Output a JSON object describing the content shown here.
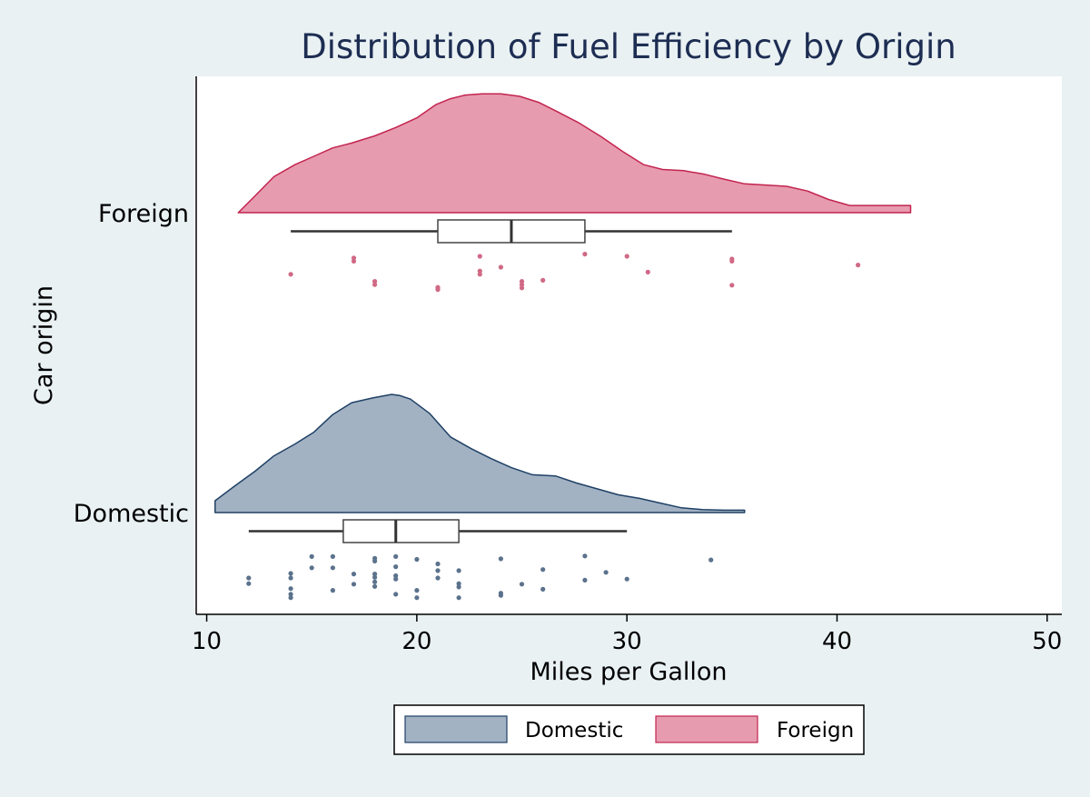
{
  "chart_data": {
    "type": "raincloud",
    "title": "Distribution of Fuel Efficiency by Origin",
    "xlabel": "Miles per Gallon",
    "ylabel": "Car origin",
    "xlim": [
      9.5,
      50.7
    ],
    "xticks": [
      10,
      20,
      30,
      40,
      50
    ],
    "xtick_labels": [
      "10",
      "20",
      "30",
      "40",
      "50"
    ],
    "grid": false,
    "legend_position": "bottom-center",
    "legend": [
      {
        "label": "Domestic",
        "color": "#a2b2c3",
        "edge": "#1f4065"
      },
      {
        "label": "Foreign",
        "color": "#e79bae",
        "edge": "#c2244f"
      }
    ],
    "series": [
      {
        "name": "Foreign",
        "color": "#e79bae",
        "edge_color": "#c2244f",
        "point_color": "#d06985",
        "density": {
          "x": [
            11.5,
            12.3,
            13.2,
            14.2,
            15.1,
            16.0,
            16.9,
            18.0,
            19.0,
            20.0,
            20.9,
            21.6,
            22.3,
            23.1,
            24.0,
            24.9,
            25.8,
            26.7,
            27.7,
            28.8,
            29.8,
            30.8,
            31.7,
            32.7,
            33.7,
            34.6,
            35.6,
            36.6,
            37.6,
            38.6,
            39.6,
            40.6,
            41.6,
            43.5
          ],
          "y": [
            0.0,
            0.14,
            0.3,
            0.4,
            0.47,
            0.54,
            0.58,
            0.64,
            0.71,
            0.79,
            0.9,
            0.95,
            0.98,
            0.99,
            0.99,
            0.97,
            0.92,
            0.84,
            0.75,
            0.63,
            0.51,
            0.4,
            0.36,
            0.35,
            0.32,
            0.28,
            0.24,
            0.23,
            0.22,
            0.18,
            0.11,
            0.06,
            0.06,
            0.06
          ]
        },
        "box": {
          "whisker_low": 14,
          "q1": 21,
          "median": 24.5,
          "q3": 28,
          "whisker_high": 35
        },
        "points": [
          {
            "x": 14,
            "j": 0.53
          },
          {
            "x": 17,
            "j": 0.23
          },
          {
            "x": 17,
            "j": 0.29
          },
          {
            "x": 18,
            "j": 0.66
          },
          {
            "x": 18,
            "j": 0.72
          },
          {
            "x": 21,
            "j": 0.77
          },
          {
            "x": 21,
            "j": 0.81
          },
          {
            "x": 23,
            "j": 0.2
          },
          {
            "x": 23,
            "j": 0.47
          },
          {
            "x": 23,
            "j": 0.53
          },
          {
            "x": 24,
            "j": 0.4
          },
          {
            "x": 25,
            "j": 0.66
          },
          {
            "x": 25,
            "j": 0.72
          },
          {
            "x": 25,
            "j": 0.78
          },
          {
            "x": 26,
            "j": 0.64
          },
          {
            "x": 28,
            "j": 0.16
          },
          {
            "x": 30,
            "j": 0.2
          },
          {
            "x": 31,
            "j": 0.49
          },
          {
            "x": 35,
            "j": 0.25
          },
          {
            "x": 35,
            "j": 0.29
          },
          {
            "x": 35,
            "j": 0.73
          },
          {
            "x": 41,
            "j": 0.36
          }
        ]
      },
      {
        "name": "Domestic",
        "color": "#a2b2c3",
        "edge_color": "#1f4065",
        "point_color": "#5b728c",
        "density": {
          "x": [
            10.4,
            11.3,
            12.3,
            13.2,
            14.2,
            15.1,
            16.0,
            16.9,
            17.9,
            18.8,
            19.2,
            19.7,
            20.6,
            21.6,
            22.6,
            23.5,
            24.5,
            25.5,
            26.6,
            27.6,
            28.6,
            29.6,
            30.6,
            31.6,
            32.6,
            33.6,
            34.6,
            35.6
          ],
          "y": [
            0.1,
            0.22,
            0.35,
            0.48,
            0.58,
            0.68,
            0.83,
            0.93,
            0.97,
            1.0,
            0.99,
            0.96,
            0.84,
            0.64,
            0.54,
            0.46,
            0.38,
            0.32,
            0.31,
            0.25,
            0.2,
            0.15,
            0.12,
            0.08,
            0.04,
            0.025,
            0.02,
            0.02
          ]
        },
        "box": {
          "whisker_low": 12,
          "q1": 16.5,
          "median": 19,
          "q3": 22,
          "whisker_high": 30
        },
        "points": [
          {
            "x": 12,
            "j": 0.58
          },
          {
            "x": 12,
            "j": 0.68
          },
          {
            "x": 14,
            "j": 0.5
          },
          {
            "x": 14,
            "j": 0.58
          },
          {
            "x": 14,
            "j": 0.77
          },
          {
            "x": 14,
            "j": 0.87
          },
          {
            "x": 14,
            "j": 0.93
          },
          {
            "x": 15,
            "j": 0.2
          },
          {
            "x": 15,
            "j": 0.4
          },
          {
            "x": 16,
            "j": 0.2
          },
          {
            "x": 16,
            "j": 0.4
          },
          {
            "x": 16,
            "j": 0.8
          },
          {
            "x": 17,
            "j": 0.51
          },
          {
            "x": 17,
            "j": 0.69
          },
          {
            "x": 18,
            "j": 0.23
          },
          {
            "x": 18,
            "j": 0.28
          },
          {
            "x": 18,
            "j": 0.51
          },
          {
            "x": 18,
            "j": 0.57
          },
          {
            "x": 18,
            "j": 0.65
          },
          {
            "x": 18,
            "j": 0.73
          },
          {
            "x": 19,
            "j": 0.2
          },
          {
            "x": 19,
            "j": 0.38
          },
          {
            "x": 19,
            "j": 0.54
          },
          {
            "x": 19,
            "j": 0.6
          },
          {
            "x": 19,
            "j": 0.87
          },
          {
            "x": 20,
            "j": 0.25
          },
          {
            "x": 20,
            "j": 0.8
          },
          {
            "x": 20,
            "j": 0.93
          },
          {
            "x": 21,
            "j": 0.33
          },
          {
            "x": 21,
            "j": 0.45
          },
          {
            "x": 21,
            "j": 0.58
          },
          {
            "x": 22,
            "j": 0.45
          },
          {
            "x": 22,
            "j": 0.68
          },
          {
            "x": 22,
            "j": 0.74
          },
          {
            "x": 22,
            "j": 0.93
          },
          {
            "x": 24,
            "j": 0.24
          },
          {
            "x": 24,
            "j": 0.85
          },
          {
            "x": 24,
            "j": 0.89
          },
          {
            "x": 25,
            "j": 0.69
          },
          {
            "x": 26,
            "j": 0.43
          },
          {
            "x": 26,
            "j": 0.78
          },
          {
            "x": 28,
            "j": 0.19
          },
          {
            "x": 28,
            "j": 0.62
          },
          {
            "x": 29,
            "j": 0.48
          },
          {
            "x": 30,
            "j": 0.6
          },
          {
            "x": 34,
            "j": 0.26
          }
        ]
      }
    ]
  }
}
